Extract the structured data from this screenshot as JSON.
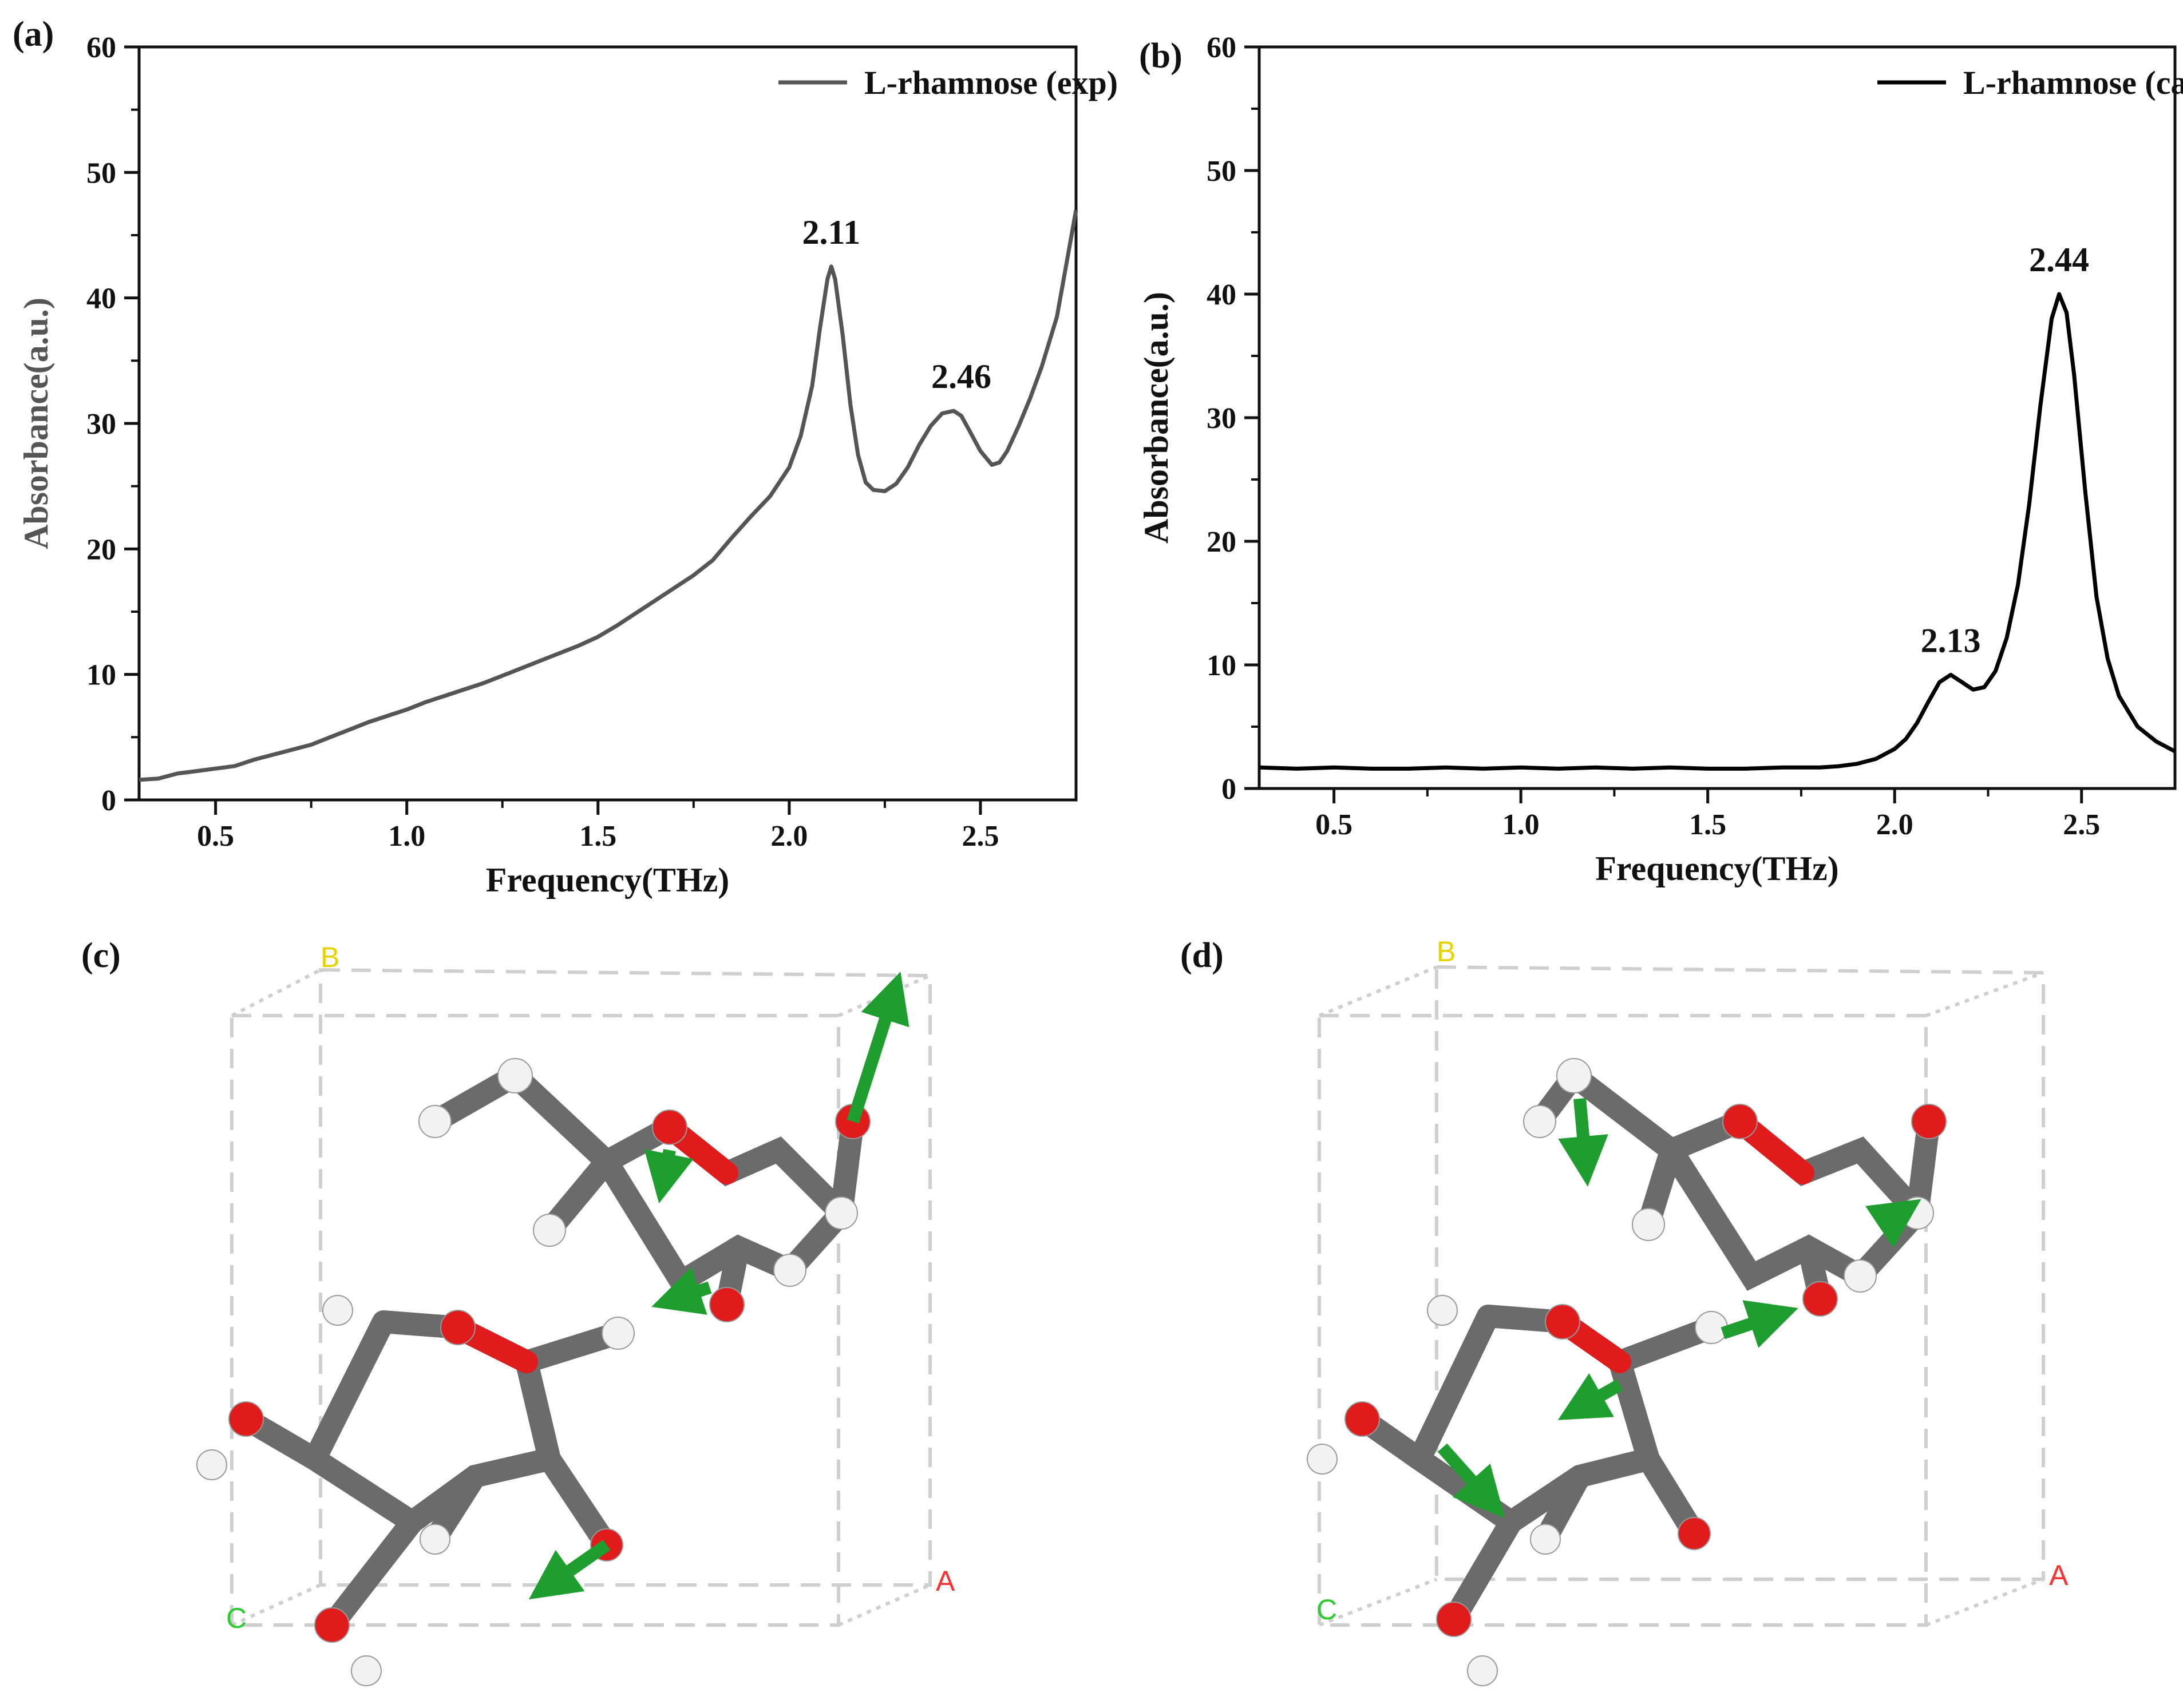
{
  "colors": {
    "exp_line": "#555555",
    "cal_line": "#000000",
    "carbon": "#6b6b6b",
    "oxygen": "#e01b1b",
    "hydrogen": "#f2f2f2",
    "arrow": "#1e9e2e",
    "cell": "#c8c8c8",
    "axis_A": "#ff3030",
    "axis_B": "#e6d200",
    "axis_C": "#2ecc2e"
  },
  "chart_data": [
    {
      "panel": "(a)",
      "type": "line",
      "xlabel": "Frequency(THz)",
      "ylabel": "Absorbance(a.u.)",
      "xlim": [
        0.3,
        2.75
      ],
      "ylim": [
        0,
        60
      ],
      "xticks": [
        "0.5",
        "1.0",
        "1.5",
        "2.0",
        "2.5"
      ],
      "yticks": [
        "0",
        "10",
        "20",
        "30",
        "40",
        "50",
        "60"
      ],
      "legend": "L-rhamnose (exp)",
      "legend_position": "top-right",
      "annotations": [
        {
          "text": "2.11",
          "x": 2.11,
          "y": 42.5
        },
        {
          "text": "2.46",
          "x": 2.45,
          "y": 31
        }
      ],
      "series": [
        {
          "name": "L-rhamnose (exp)",
          "x": [
            0.3,
            0.35,
            0.4,
            0.45,
            0.5,
            0.55,
            0.6,
            0.65,
            0.7,
            0.75,
            0.8,
            0.85,
            0.9,
            0.95,
            1.0,
            1.05,
            1.1,
            1.15,
            1.2,
            1.25,
            1.3,
            1.35,
            1.4,
            1.45,
            1.5,
            1.55,
            1.6,
            1.65,
            1.7,
            1.75,
            1.8,
            1.85,
            1.9,
            1.95,
            2.0,
            2.03,
            2.06,
            2.08,
            2.1,
            2.11,
            2.12,
            2.14,
            2.16,
            2.18,
            2.2,
            2.22,
            2.25,
            2.28,
            2.31,
            2.34,
            2.37,
            2.4,
            2.43,
            2.45,
            2.47,
            2.5,
            2.53,
            2.55,
            2.57,
            2.6,
            2.63,
            2.66,
            2.7,
            2.75
          ],
          "y": [
            1.6,
            1.7,
            2.1,
            2.3,
            2.5,
            2.7,
            3.2,
            3.6,
            4.0,
            4.4,
            5.0,
            5.6,
            6.2,
            6.7,
            7.2,
            7.8,
            8.3,
            8.8,
            9.3,
            9.9,
            10.5,
            11.1,
            11.7,
            12.3,
            13.0,
            13.9,
            14.9,
            15.9,
            16.9,
            17.9,
            19.1,
            20.9,
            22.6,
            24.2,
            26.5,
            29.0,
            33.0,
            37.5,
            41.5,
            42.5,
            41.5,
            37.0,
            31.5,
            27.5,
            25.3,
            24.7,
            24.6,
            25.2,
            26.5,
            28.3,
            29.8,
            30.8,
            31.0,
            30.6,
            29.5,
            27.8,
            26.7,
            26.9,
            27.8,
            29.8,
            32.0,
            34.5,
            38.5,
            47.0
          ]
        }
      ]
    },
    {
      "panel": "(b)",
      "type": "line",
      "xlabel": "Frequency(THz)",
      "ylabel": "Absorbance(a.u.)",
      "xlim": [
        0.3,
        2.75
      ],
      "ylim": [
        0,
        60
      ],
      "xticks": [
        "0.5",
        "1.0",
        "1.5",
        "2.0",
        "2.5"
      ],
      "yticks": [
        "0",
        "10",
        "20",
        "30",
        "40",
        "50",
        "60"
      ],
      "legend": "L-rhamnose (cal)",
      "legend_position": "top-right",
      "annotations": [
        {
          "text": "2.13",
          "x": 2.15,
          "y": 9.2
        },
        {
          "text": "2.44",
          "x": 2.44,
          "y": 40.0
        }
      ],
      "series": [
        {
          "name": "L-rhamnose (cal)",
          "x": [
            0.3,
            0.4,
            0.5,
            0.6,
            0.7,
            0.8,
            0.9,
            1.0,
            1.1,
            1.2,
            1.3,
            1.4,
            1.5,
            1.6,
            1.7,
            1.8,
            1.85,
            1.9,
            1.95,
            2.0,
            2.03,
            2.06,
            2.09,
            2.12,
            2.15,
            2.18,
            2.21,
            2.24,
            2.27,
            2.3,
            2.33,
            2.36,
            2.39,
            2.42,
            2.44,
            2.46,
            2.48,
            2.51,
            2.54,
            2.57,
            2.6,
            2.65,
            2.7,
            2.75
          ],
          "y": [
            1.7,
            1.6,
            1.7,
            1.6,
            1.6,
            1.7,
            1.6,
            1.7,
            1.6,
            1.7,
            1.6,
            1.7,
            1.6,
            1.6,
            1.7,
            1.7,
            1.8,
            2.0,
            2.4,
            3.2,
            4.0,
            5.3,
            7.0,
            8.6,
            9.2,
            8.6,
            8.0,
            8.2,
            9.5,
            12.2,
            16.5,
            23.0,
            31.0,
            38.0,
            40.0,
            38.5,
            33.5,
            24.0,
            15.5,
            10.5,
            7.5,
            5.0,
            3.8,
            3.0
          ]
        }
      ]
    }
  ],
  "panels": {
    "c": {
      "label": "(c)",
      "axis_a": "A",
      "axis_b": "B",
      "axis_c": "C"
    },
    "d": {
      "label": "(d)",
      "axis_a": "A",
      "axis_b": "B",
      "axis_c": "C"
    }
  }
}
